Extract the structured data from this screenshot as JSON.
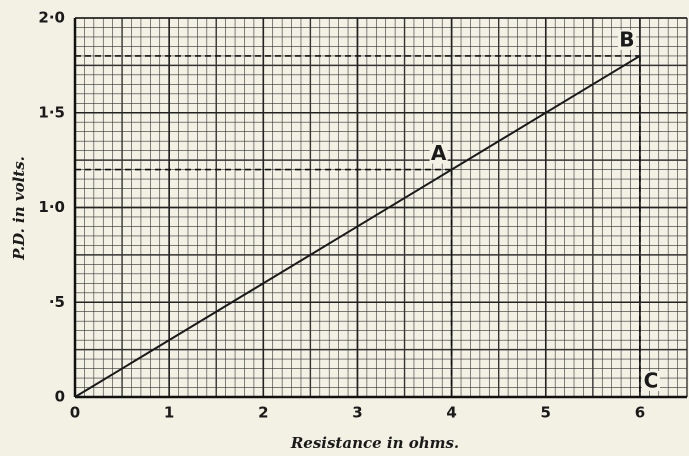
{
  "chart_data": {
    "type": "line",
    "xlabel": "Resistance in ohms.",
    "ylabel": "P.D. in volts.",
    "x": [
      0,
      6
    ],
    "series": [
      {
        "color": "#1a1a1a",
        "values": [
          0,
          1.8
        ]
      }
    ],
    "xlim": [
      0,
      6.5
    ],
    "ylim": [
      0,
      2.0
    ],
    "xticks": [
      0,
      1,
      2,
      3,
      4,
      5,
      6
    ],
    "yticks": [
      0,
      {
        "value": 0.5,
        "label": "·5"
      },
      {
        "value": 1.0,
        "label": "1·0"
      },
      {
        "value": 1.5,
        "label": "1·5"
      },
      {
        "value": 2.0,
        "label": "2·0"
      }
    ],
    "grid": true,
    "annotations": [
      {
        "text": "A",
        "x": 4,
        "y": 1.2
      },
      {
        "text": "B",
        "x": 6,
        "y": 1.8
      },
      {
        "text": "C",
        "x": 6,
        "y": 0
      }
    ]
  }
}
